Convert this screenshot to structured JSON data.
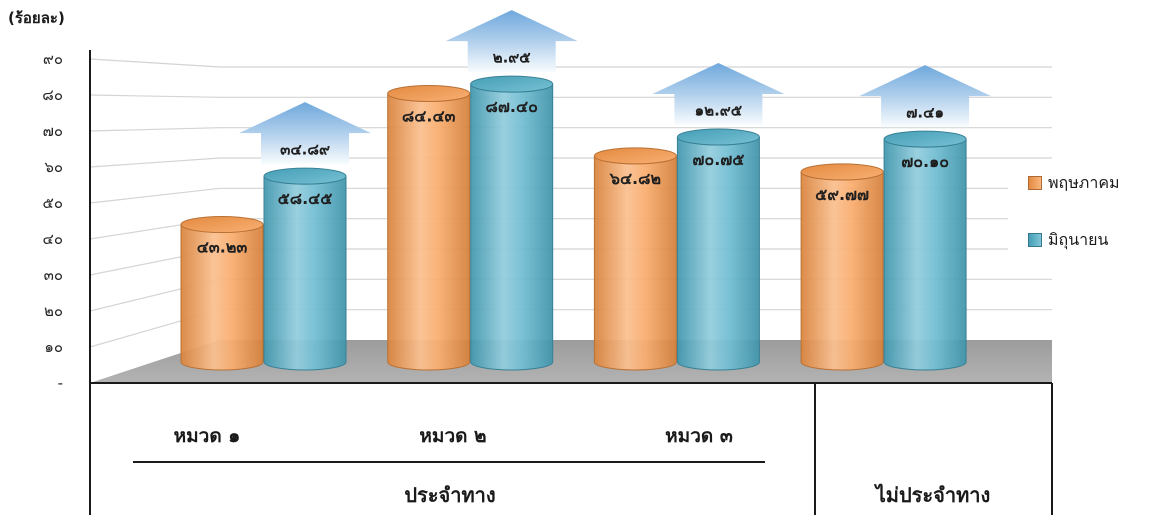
{
  "chart_data": {
    "type": "bar",
    "perspective_3d": true,
    "ylabel": "(ร้อยละ)",
    "ylim": [
      0,
      90
    ],
    "y_ticks": [
      90,
      80,
      70,
      60,
      50,
      40,
      30,
      20,
      10,
      0
    ],
    "y_tick_labels": [
      "๙๐",
      "๘๐",
      "๗๐",
      "๖๐",
      "๕๐",
      "๔๐",
      "๓๐",
      "๒๐",
      "๑๐",
      "-"
    ],
    "categories": [
      "หมวด ๑",
      "หมวด ๒",
      "หมวด ๓",
      "ไม่ประจำทาง"
    ],
    "category_groups": [
      {
        "label": "ประจำทาง",
        "members": [
          0,
          1,
          2
        ]
      }
    ],
    "series": [
      {
        "name": "พฤษภาคม",
        "color": "#f79646",
        "values": [
          43.23,
          84.43,
          64.82,
          59.77
        ],
        "labels": [
          "๔๓.๒๓",
          "๘๔.๔๓",
          "๖๔.๘๒",
          "๕๙.๗๗"
        ]
      },
      {
        "name": "มิถุนายน",
        "color": "#4bacc6",
        "values": [
          58.45,
          87.4,
          70.75,
          70.1
        ],
        "labels": [
          "๕๘.๔๕",
          "๘๗.๔๐",
          "๗๐.๗๕",
          "๗๐.๑๐"
        ]
      }
    ],
    "change_arrows": {
      "color": "#6fa8dc",
      "values": [
        34.89,
        2.95,
        12.95,
        7.41
      ],
      "labels": [
        "๓๔.๘๙",
        "๒.๙๕",
        "๑๒.๙๕",
        "๗.๔๑"
      ]
    },
    "legend": {
      "position": "right"
    },
    "grid": true,
    "floor_color": "#a6a6a6"
  }
}
